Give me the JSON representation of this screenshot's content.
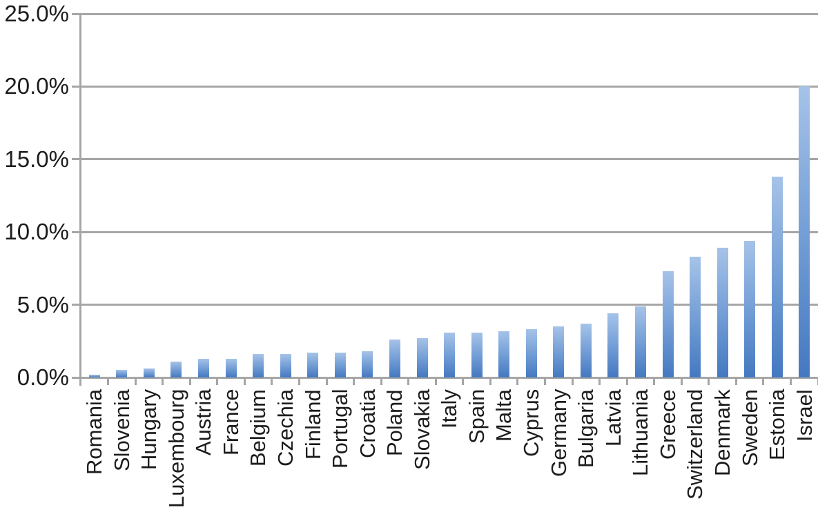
{
  "chart_data": {
    "type": "bar",
    "title": "",
    "xlabel": "",
    "ylabel": "",
    "unit": "%",
    "categories": [
      "Romania",
      "Slovenia",
      "Hungary",
      "Luxembourg",
      "Austria",
      "France",
      "Belgium",
      "Czechia",
      "Finland",
      "Portugal",
      "Croatia",
      "Poland",
      "Slovakia",
      "Italy",
      "Spain",
      "Malta",
      "Cyprus",
      "Germany",
      "Bulgaria",
      "Latvia",
      "Lithuania",
      "Greece",
      "Switzerland",
      "Denmark",
      "Sweden",
      "Estonia",
      "Israel"
    ],
    "values": [
      0.2,
      0.5,
      0.6,
      1.1,
      1.3,
      1.3,
      1.6,
      1.6,
      1.7,
      1.7,
      1.8,
      2.6,
      2.7,
      3.1,
      3.1,
      3.2,
      3.3,
      3.5,
      3.7,
      4.4,
      4.9,
      7.3,
      8.3,
      8.9,
      9.4,
      13.8,
      20.0
    ],
    "ylim": [
      0,
      25
    ],
    "y_tick_values": [
      0,
      5,
      10,
      15,
      20,
      25
    ],
    "y_tick_labels": [
      "0.0%",
      "5.0%",
      "10.0%",
      "15.0%",
      "20.0%",
      "25.0%"
    ],
    "grid": "horizontal-major",
    "legend": "none",
    "x_label_rotation_deg": 90,
    "colors": {
      "bar_gradient_top": "#a6c3e8",
      "bar_gradient_bottom": "#4478c0",
      "gridline": "#a6a6a6",
      "axis": "#a6a6a6",
      "text": "#1c1c1c",
      "background": "#ffffff"
    }
  }
}
